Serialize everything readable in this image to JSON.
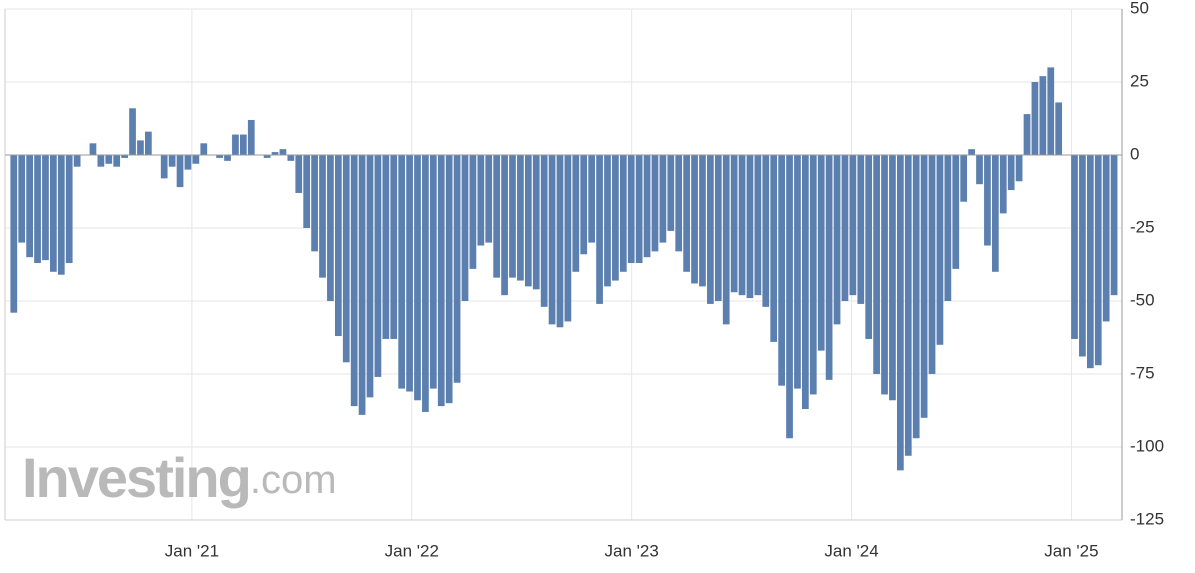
{
  "chart_data": {
    "type": "bar",
    "brand": "Investing",
    "brand_suffix": ".com",
    "color": "#5b7fae",
    "grid": true,
    "xlim": [
      2020.15,
      2025.23
    ],
    "xticks": [
      {
        "value": 2021,
        "label": "Jan '21"
      },
      {
        "value": 2022,
        "label": "Jan '22"
      },
      {
        "value": 2023,
        "label": "Jan '23"
      },
      {
        "value": 2024,
        "label": "Jan '24"
      },
      {
        "value": 2025,
        "label": "Jan '25"
      }
    ],
    "ylim": [
      -125,
      50
    ],
    "yticks": [
      50,
      25,
      0,
      -25,
      -50,
      -75,
      -100,
      -125
    ],
    "x": [
      2020.19,
      2020.226,
      2020.262,
      2020.298,
      2020.334,
      2020.37,
      2020.406,
      2020.442,
      2020.478,
      2020.514,
      2020.55,
      2020.586,
      2020.622,
      2020.658,
      2020.694,
      2020.73,
      2020.766,
      2020.802,
      2020.838,
      2020.874,
      2020.91,
      2020.946,
      2020.982,
      2021.018,
      2021.054,
      2021.09,
      2021.126,
      2021.162,
      2021.198,
      2021.234,
      2021.27,
      2021.306,
      2021.342,
      2021.378,
      2021.414,
      2021.45,
      2021.486,
      2021.522,
      2021.558,
      2021.594,
      2021.63,
      2021.666,
      2021.702,
      2021.738,
      2021.774,
      2021.81,
      2021.846,
      2021.882,
      2021.918,
      2021.954,
      2021.99,
      2022.026,
      2022.062,
      2022.098,
      2022.134,
      2022.17,
      2022.206,
      2022.242,
      2022.278,
      2022.314,
      2022.35,
      2022.386,
      2022.422,
      2022.458,
      2022.494,
      2022.53,
      2022.566,
      2022.602,
      2022.638,
      2022.674,
      2022.71,
      2022.746,
      2022.782,
      2022.818,
      2022.854,
      2022.89,
      2022.926,
      2022.962,
      2022.998,
      2023.034,
      2023.07,
      2023.106,
      2023.142,
      2023.178,
      2023.214,
      2023.25,
      2023.286,
      2023.322,
      2023.358,
      2023.394,
      2023.43,
      2023.466,
      2023.502,
      2023.538,
      2023.574,
      2023.61,
      2023.646,
      2023.682,
      2023.718,
      2023.754,
      2023.79,
      2023.826,
      2023.862,
      2023.898,
      2023.934,
      2023.97,
      2024.006,
      2024.042,
      2024.078,
      2024.114,
      2024.15,
      2024.186,
      2024.222,
      2024.258,
      2024.294,
      2024.33,
      2024.366,
      2024.402,
      2024.438,
      2024.474,
      2024.51,
      2024.546,
      2024.582,
      2024.618,
      2024.654,
      2024.69,
      2024.726,
      2024.762,
      2024.798,
      2024.834,
      2024.87,
      2024.906,
      2024.942,
      2024.978,
      2025.014,
      2025.05,
      2025.086,
      2025.122,
      2025.158,
      2025.194
    ],
    "values": [
      -54,
      -30,
      -35,
      -37,
      -36,
      -40,
      -41,
      -37,
      -4,
      0,
      4,
      -4,
      -3,
      -4,
      -1,
      16,
      5,
      8,
      0,
      -8,
      -4,
      -11,
      -5,
      -3,
      4,
      0,
      -1,
      -2,
      7,
      7,
      12,
      0,
      -1,
      1,
      2,
      -2,
      -13,
      -25,
      -33,
      -42,
      -50,
      -62,
      -71,
      -86,
      -89,
      -83,
      -76,
      -63,
      -63,
      -80,
      -81,
      -84,
      -88,
      -80,
      -86,
      -85,
      -78,
      -50,
      -39,
      -31,
      -30,
      -42,
      -48,
      -42,
      -43,
      -45,
      -46,
      -52,
      -58,
      -59,
      -57,
      -40,
      -34,
      -30,
      -51,
      -45,
      -43,
      -40,
      -37,
      -37,
      -35,
      -33,
      -30,
      -26,
      -33,
      -40,
      -44,
      -45,
      -51,
      -50,
      -58,
      -47,
      -48,
      -49,
      -48,
      -52,
      -64,
      -79,
      -97,
      -80,
      -87,
      -82,
      -67,
      -77,
      -58,
      -50,
      -48,
      -51,
      -63,
      -75,
      -82,
      -84,
      -108,
      -103,
      -97,
      -90,
      -75,
      -65,
      -50,
      -39,
      -16,
      2,
      -10,
      -31,
      -40,
      -20,
      -12,
      -9,
      14,
      25,
      27,
      30,
      18,
      0,
      -63,
      -69,
      -73,
      -72,
      -57,
      -48
    ]
  }
}
